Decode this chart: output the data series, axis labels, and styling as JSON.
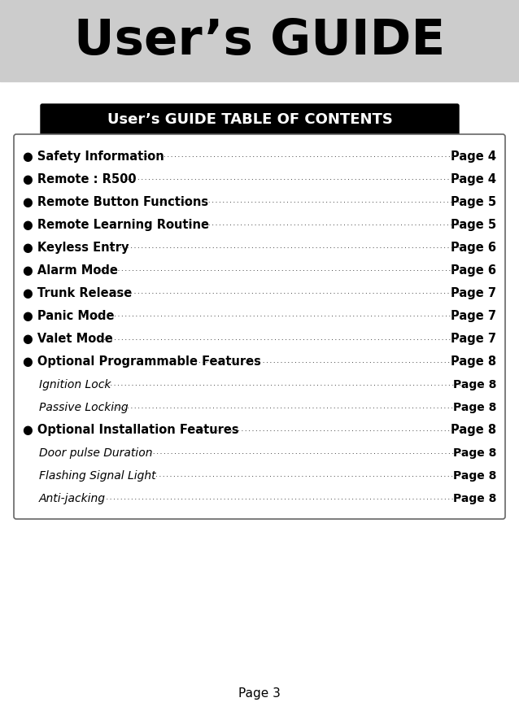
{
  "title": "User’s GUIDE",
  "title_bg": "#cccccc",
  "toc_header": "User’s GUIDE TABLE OF CONTENTS",
  "toc_header_bg": "#000000",
  "toc_header_color": "#ffffff",
  "page_bg": "#ffffff",
  "footer": "Page 3",
  "entries": [
    {
      "label": "● Safety Information",
      "page": "Page 4",
      "bold": true,
      "indent": 0,
      "italic": false
    },
    {
      "label": "● Remote : R500",
      "page": "Page 4",
      "bold": true,
      "indent": 0,
      "italic": false
    },
    {
      "label": "● Remote Button Functions",
      "page": "Page 5",
      "bold": true,
      "indent": 0,
      "italic": false
    },
    {
      "label": "● Remote Learning Routine",
      "page": "Page 5",
      "bold": true,
      "indent": 0,
      "italic": false
    },
    {
      "label": "● Keyless Entry",
      "page": "Page 6",
      "bold": true,
      "indent": 0,
      "italic": false
    },
    {
      "label": "● Alarm Mode",
      "page": "Page 6",
      "bold": true,
      "indent": 0,
      "italic": false
    },
    {
      "label": "● Trunk Release",
      "page": "Page 7",
      "bold": true,
      "indent": 0,
      "italic": false
    },
    {
      "label": "● Panic Mode",
      "page": "Page 7",
      "bold": true,
      "indent": 0,
      "italic": false
    },
    {
      "label": "● Valet Mode",
      "page": "Page 7",
      "bold": true,
      "indent": 0,
      "italic": false
    },
    {
      "label": "● Optional Programmable Features",
      "page": "Page 8",
      "bold": true,
      "indent": 0,
      "italic": false
    },
    {
      "label": "Ignition Lock",
      "page": "Page 8",
      "bold": false,
      "indent": 1,
      "italic": true
    },
    {
      "label": "Passive Locking",
      "page": "Page 8",
      "bold": false,
      "indent": 1,
      "italic": true
    },
    {
      "label": "● Optional Installation Features",
      "page": "Page 8",
      "bold": true,
      "indent": 0,
      "italic": false
    },
    {
      "label": "Door pulse Duration",
      "page": "Page 8",
      "bold": false,
      "indent": 1,
      "italic": true
    },
    {
      "label": "Flashing Signal Light",
      "page": "Page 8",
      "bold": false,
      "indent": 1,
      "italic": true
    },
    {
      "label": "Anti-jacking",
      "page": "Page 8",
      "bold": false,
      "indent": 1,
      "italic": true
    }
  ]
}
